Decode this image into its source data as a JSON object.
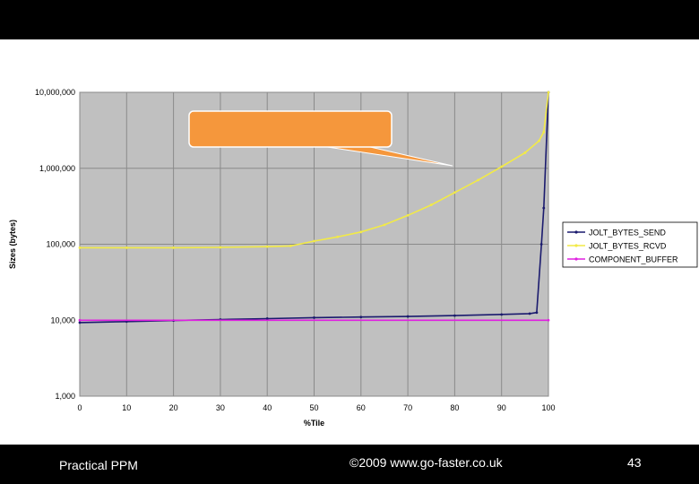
{
  "footer": {
    "left": "Practical PPM",
    "center": "©2009 www.go-faster.co.uk",
    "page_number": "43"
  },
  "chart_data": {
    "type": "line",
    "xlabel": "%Tile",
    "ylabel": "Sizes (bytes)",
    "xlim": [
      0,
      100
    ],
    "ylim": [
      1000,
      10000000
    ],
    "y_scale": "log",
    "grid": true,
    "x_ticks": [
      "0",
      "10",
      "20",
      "30",
      "40",
      "50",
      "60",
      "70",
      "80",
      "90",
      "100"
    ],
    "y_ticks": [
      "1,000",
      "10,000",
      "100,000",
      "1,000,000",
      "10,000,000"
    ],
    "y_tick_values": [
      1000,
      10000,
      100000,
      1000000,
      10000000
    ],
    "legend_position": "right",
    "series": [
      {
        "name": "JOLT_BYTES_SEND",
        "color": "#1a1a6e",
        "x": [
          0,
          10,
          20,
          30,
          40,
          50,
          60,
          70,
          80,
          90,
          96,
          97.5,
          98.5,
          99,
          100
        ],
        "y": [
          9300,
          9600,
          9900,
          10200,
          10500,
          10800,
          11000,
          11200,
          11500,
          11900,
          12200,
          12600,
          100000,
          300000,
          10000000
        ]
      },
      {
        "name": "JOLT_BYTES_RCVD",
        "color": "#f2ea46",
        "x": [
          0,
          10,
          20,
          30,
          40,
          45,
          50,
          55,
          60,
          65,
          70,
          75,
          80,
          85,
          90,
          95,
          98,
          99,
          100
        ],
        "y": [
          90000,
          90000,
          90000,
          91000,
          93000,
          95000,
          110000,
          125000,
          145000,
          180000,
          240000,
          330000,
          480000,
          700000,
          1050000,
          1600000,
          2300000,
          3000000,
          10000000
        ]
      },
      {
        "name": "COMPONENT_BUFFER",
        "color": "#e020e0",
        "x": [
          0,
          100
        ],
        "y": [
          10000,
          10000
        ]
      }
    ],
    "callout": {
      "fill": "#f5973c",
      "text": ""
    }
  }
}
